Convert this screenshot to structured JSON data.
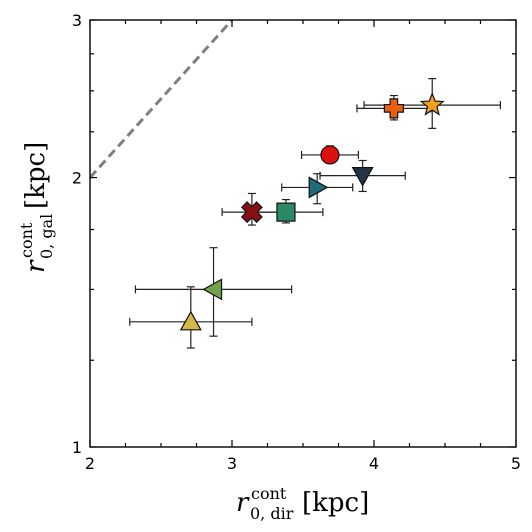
{
  "chart_data": {
    "type": "scatter",
    "title": "",
    "xlabel": {
      "base": "r",
      "sup": "cont",
      "sub": "0, dir",
      "unit": "[kpc]"
    },
    "ylabel": {
      "base": "r",
      "sup": "cont",
      "sub": "0, gal",
      "unit": "[kpc]"
    },
    "xlim": [
      2,
      5
    ],
    "ylim": [
      1,
      3
    ],
    "yscale": "log",
    "xticks": [
      2,
      3,
      4,
      5
    ],
    "xtick_labels": [
      "2",
      "3",
      "4",
      "5"
    ],
    "yticks": [
      1,
      2,
      3
    ],
    "ytick_labels": [
      "1",
      "2",
      "3"
    ],
    "grid": false,
    "reference_line": {
      "style": "dashed",
      "color": "#808080",
      "points": [
        [
          2,
          2
        ],
        [
          3,
          3
        ]
      ]
    },
    "points": [
      {
        "x": 2.71,
        "y": 1.38,
        "xerr": [
          0.43,
          0.43
        ],
        "yerr": [
          0.09,
          0.13
        ],
        "marker": "triangle-up",
        "color": "#d4b84a"
      },
      {
        "x": 2.87,
        "y": 1.5,
        "xerr": [
          0.55,
          0.55
        ],
        "yerr": [
          0.17,
          0.17
        ],
        "marker": "triangle-left",
        "color": "#6fa34a"
      },
      {
        "x": 3.14,
        "y": 1.83,
        "xerr": [
          0.21,
          0.21
        ],
        "yerr": [
          0.06,
          0.09
        ],
        "marker": "x",
        "color": "#8b0e14"
      },
      {
        "x": 3.38,
        "y": 1.83,
        "xerr": [
          0.26,
          0.26
        ],
        "yerr": [
          0.05,
          0.06
        ],
        "marker": "square",
        "color": "#2a8a64"
      },
      {
        "x": 3.6,
        "y": 1.95,
        "xerr": [
          0.25,
          0.25
        ],
        "yerr": [
          0.08,
          0.07
        ],
        "marker": "triangle-right",
        "color": "#1f6b78"
      },
      {
        "x": 3.69,
        "y": 2.12,
        "xerr": [
          0.2,
          0.2
        ],
        "yerr": [
          0.04,
          0.05
        ],
        "marker": "circle",
        "color": "#dd1010"
      },
      {
        "x": 3.92,
        "y": 2.01,
        "xerr": [
          0.3,
          0.3
        ],
        "yerr": [
          0.08,
          0.08
        ],
        "marker": "triangle-down",
        "color": "#233545"
      },
      {
        "x": 4.14,
        "y": 2.39,
        "xerr": [
          0.26,
          0.26
        ],
        "yerr": [
          0.07,
          0.08
        ],
        "marker": "plus",
        "color": "#e8600f"
      },
      {
        "x": 4.41,
        "y": 2.41,
        "xerr": [
          0.48,
          0.48
        ],
        "yerr": [
          0.14,
          0.17
        ],
        "marker": "star",
        "color": "#f0a020"
      }
    ]
  }
}
